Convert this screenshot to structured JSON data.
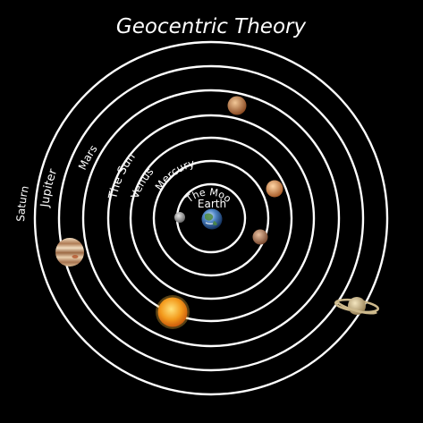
{
  "title": "Geocentric Theory",
  "center_body": "Earth",
  "orbits": [
    {
      "label": "The Moon",
      "body": "moon"
    },
    {
      "label": "Mercury",
      "body": "mercury"
    },
    {
      "label": "Venus",
      "body": "venus"
    },
    {
      "label": "The Sun",
      "body": "sun"
    },
    {
      "label": "Mars",
      "body": "mars"
    },
    {
      "label": "Jupiter",
      "body": "jupiter"
    },
    {
      "label": "Saturn",
      "body": "saturn"
    }
  ],
  "colors": {
    "background": "#000000",
    "orbit_line": "#ffffff",
    "text": "#ffffff",
    "earth": "#3f78b8",
    "moon": "#9a9a9a",
    "mercury": "#b07a5a",
    "venus": "#d8955a",
    "sun": "#f39a1c",
    "mars": "#c8864e",
    "jupiter": "#c9a27a",
    "saturn": "#d8c79a"
  }
}
